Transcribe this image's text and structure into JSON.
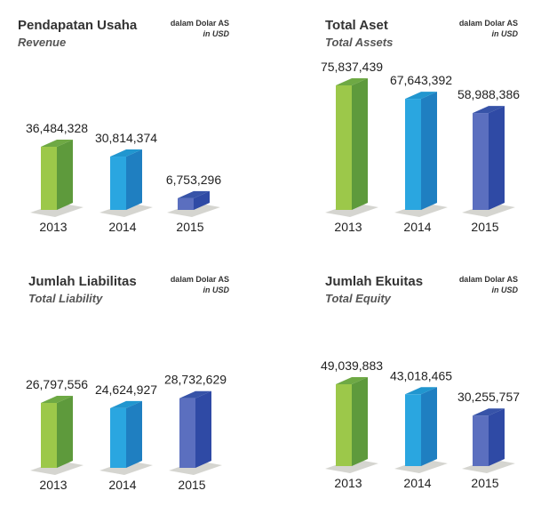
{
  "colors": {
    "2013": {
      "front": "#9cc84a",
      "side": "#5e9a3c",
      "top": "#6ea944"
    },
    "2014": {
      "front": "#2aa6e0",
      "side": "#1f7fc1",
      "top": "#2196cf"
    },
    "2015": {
      "front": "#5b6fbf",
      "side": "#2f4aa5",
      "top": "#3753a8"
    },
    "shadow": "#d5d5d0"
  },
  "chart_data": [
    {
      "type": "bar",
      "title": "Pendapatan Usaha",
      "subtitle": "Revenue",
      "unit_id": "dalam Dolar AS",
      "unit_en": "in USD",
      "categories": [
        "2013",
        "2014",
        "2015"
      ],
      "values": [
        36484328,
        30814374,
        6753296
      ],
      "value_labels": [
        "36,484,328",
        "30,814,374",
        "6,753,296"
      ]
    },
    {
      "type": "bar",
      "title": "Total Aset",
      "subtitle": "Total Assets",
      "unit_id": "dalam Dolar AS",
      "unit_en": "in USD",
      "categories": [
        "2013",
        "2014",
        "2015"
      ],
      "values": [
        75837439,
        67643392,
        58988386
      ],
      "value_labels": [
        "75,837,439",
        "67,643,392",
        "58,988,386"
      ]
    },
    {
      "type": "bar",
      "title": "Jumlah Liabilitas",
      "subtitle": "Total Liability",
      "unit_id": "dalam Dolar AS",
      "unit_en": "in USD",
      "categories": [
        "2013",
        "2014",
        "2015"
      ],
      "values": [
        26797556,
        24624927,
        28732629
      ],
      "value_labels": [
        "26,797,556",
        "24,624,927",
        "28,732,629"
      ]
    },
    {
      "type": "bar",
      "title": "Jumlah Ekuitas",
      "subtitle": "Total Equity",
      "unit_id": "dalam Dolar AS",
      "unit_en": "in USD",
      "categories": [
        "2013",
        "2014",
        "2015"
      ],
      "values": [
        49039883,
        43018465,
        30255757
      ],
      "value_labels": [
        "49,039,883",
        "43,018,465",
        "30,255,757"
      ]
    }
  ]
}
